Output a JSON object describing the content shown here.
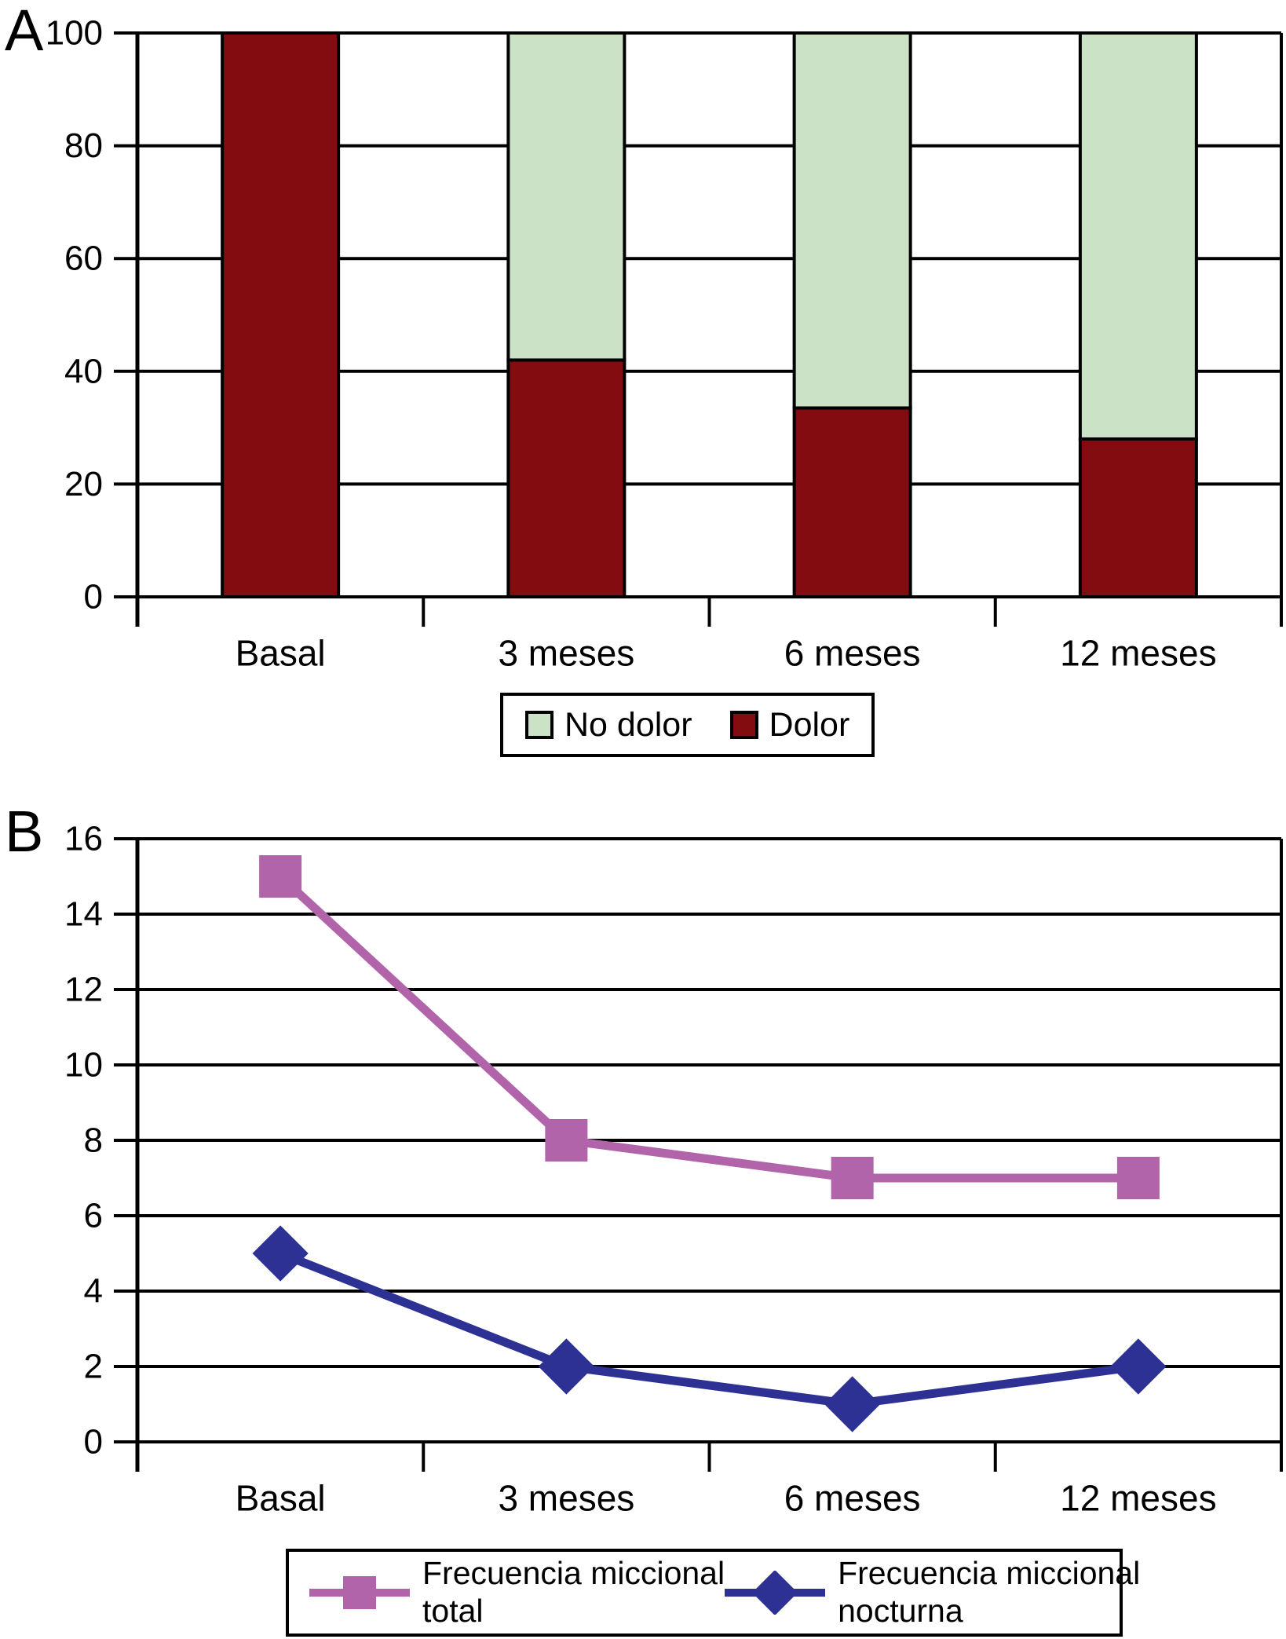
{
  "page": {
    "background": "#ffffff",
    "axis_color": "#000000"
  },
  "chart_data": [
    {
      "panel_label": "A",
      "type": "bar",
      "stacked": true,
      "categories": [
        "Basal",
        "3 meses",
        "6 meses",
        "12 meses"
      ],
      "series": [
        {
          "name": "Dolor",
          "color": "#830c10",
          "values": [
            100,
            42,
            33.5,
            28
          ]
        },
        {
          "name": "No dolor",
          "color": "#cbe2c6",
          "values": [
            0,
            58,
            66.5,
            72
          ]
        }
      ],
      "title": "",
      "xlabel": "",
      "ylabel": "",
      "ylim": [
        0,
        100
      ],
      "yticks": [
        0,
        20,
        40,
        60,
        80,
        100
      ],
      "grid": true,
      "legend_position": "bottom",
      "legend": [
        {
          "label": "No dolor",
          "color": "#cbe2c6"
        },
        {
          "label": "Dolor",
          "color": "#830c10"
        }
      ]
    },
    {
      "panel_label": "B",
      "type": "line",
      "categories": [
        "Basal",
        "3 meses",
        "6 meses",
        "12 meses"
      ],
      "series": [
        {
          "name": "Frecuencia miccional total",
          "color": "#b164aa",
          "marker": "square",
          "values": [
            15,
            8,
            7,
            7
          ]
        },
        {
          "name": "Frecuencia miccional nocturna",
          "color": "#2d3193",
          "marker": "diamond",
          "values": [
            5,
            2,
            1,
            2
          ]
        }
      ],
      "title": "",
      "xlabel": "",
      "ylabel": "",
      "ylim": [
        0,
        16
      ],
      "yticks": [
        0,
        2,
        4,
        6,
        8,
        10,
        12,
        14,
        16
      ],
      "grid": true,
      "legend_position": "bottom",
      "legend": [
        {
          "label": "Frecuencia miccional total",
          "lines": [
            "Frecuencia miccional",
            "total"
          ],
          "marker": "square",
          "color": "#b164aa"
        },
        {
          "label": "Frecuencia miccional nocturna",
          "lines": [
            "Frecuencia miccional",
            "nocturna"
          ],
          "marker": "diamond",
          "color": "#2d3193"
        }
      ]
    }
  ]
}
